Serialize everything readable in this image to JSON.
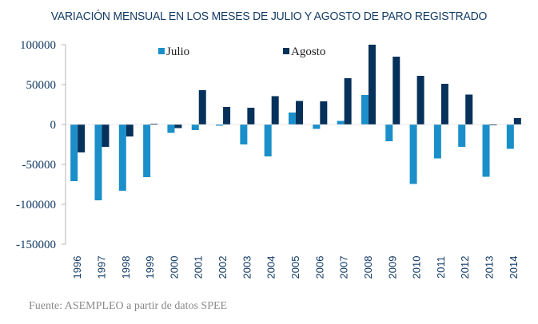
{
  "chart_data": {
    "type": "bar",
    "title": "VARIACIÓN MENSUAL EN LOS MESES DE JULIO Y AGOSTO DE PARO REGISTRADO",
    "xlabel": "",
    "ylabel": "",
    "ylim": [
      -150000,
      100000
    ],
    "yticks": [
      100000,
      50000,
      0,
      -50000,
      -100000,
      -150000
    ],
    "ytick_labels": [
      "100000",
      "50000",
      "0",
      "-50000",
      "-100000",
      "-150000"
    ],
    "grid": false,
    "legend_position": "top",
    "categories": [
      "1996",
      "1997",
      "1998",
      "1999",
      "2000",
      "2001",
      "2002",
      "2003",
      "2004",
      "2005",
      "2006",
      "2007",
      "2008",
      "2009",
      "2010",
      "2011",
      "2012",
      "2013",
      "2014"
    ],
    "series": [
      {
        "name": "Julio",
        "color": "#1b8fc9",
        "values": [
          -71000,
          -95000,
          -83000,
          -66000,
          -10500,
          -7000,
          -1500,
          -25000,
          -40000,
          15000,
          -5500,
          4500,
          37000,
          -21000,
          -74500,
          -42500,
          -28000,
          -65500,
          -30500
        ]
      },
      {
        "name": "Agosto",
        "color": "#06315a",
        "values": [
          -35000,
          -28000,
          -15000,
          1000,
          -4500,
          43000,
          22000,
          21000,
          35500,
          29500,
          29000,
          58000,
          100000,
          85000,
          61000,
          51000,
          37500,
          -1000,
          8000
        ]
      }
    ]
  },
  "source": "Fuente: ASEMPLEO a partir de datos SPEE"
}
